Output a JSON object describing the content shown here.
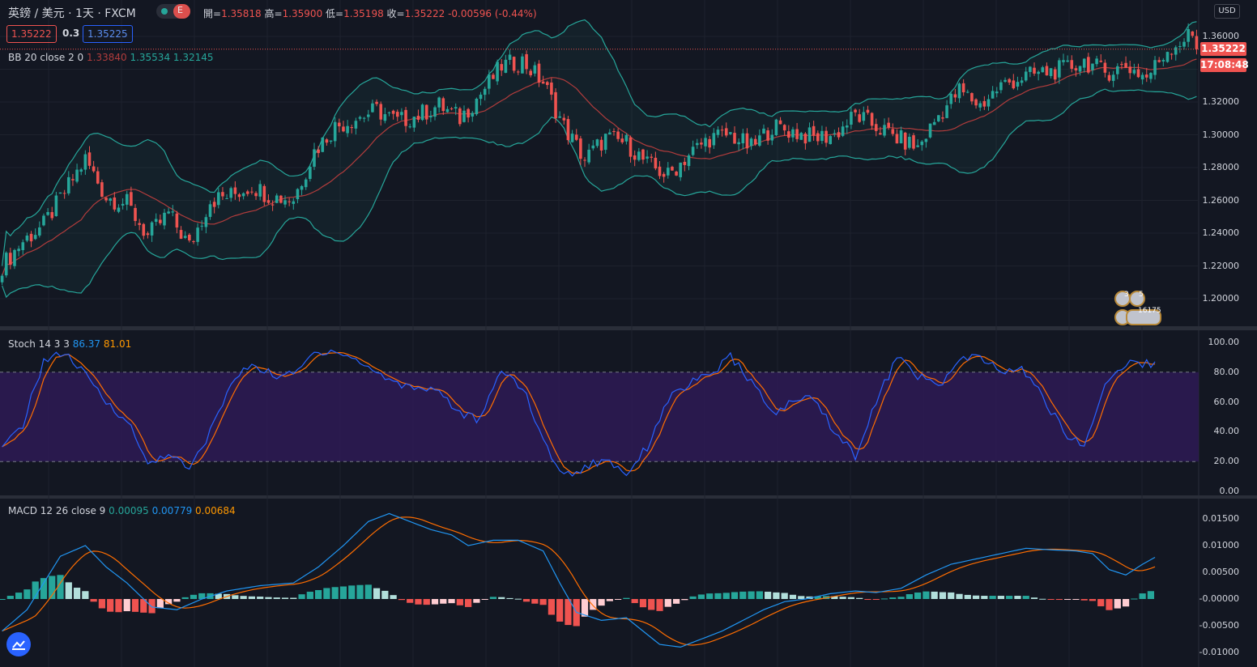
{
  "header": {
    "symbol": "英鎊 / 美元 · 1天 · FXCM",
    "pill_letter": "E",
    "open_label": "開=",
    "open": "1.35818",
    "high_label": "高=",
    "high": "1.35900",
    "low_label": "低=",
    "low": "1.35198",
    "close_label": "收=",
    "close": "1.35222",
    "change": "-0.00596 (-0.44%)",
    "sell_price": "1.35222",
    "spread": "0.3",
    "buy_price": "1.35225"
  },
  "colors": {
    "background": "#131722",
    "up": "#26a69a",
    "down": "#ef5350",
    "bb_band": "#26a69a",
    "bb_basis": "#b13c3c",
    "stoch_k": "#2962ff",
    "stoch_d": "#ff6d00",
    "stoch_band": "#2e1a55",
    "macd_line": "#2196f3",
    "signal_line": "#ff6d00"
  },
  "bb_legend": {
    "name": "BB 20 close 2 0",
    "basis": "1.33840",
    "upper": "1.35534",
    "lower": "1.32145"
  },
  "stoch_legend": {
    "name": "Stoch 14 3 3",
    "k": "86.37",
    "d": "81.01"
  },
  "macd_legend": {
    "name": "MACD 12 26 close 9",
    "hist": "0.00095",
    "macd": "0.00779",
    "signal": "0.00684"
  },
  "price_axis": {
    "currency": "USD",
    "ticks": [
      "1.36000",
      "1.34000",
      "1.32000",
      "1.30000",
      "1.28000",
      "1.26000",
      "1.24000",
      "1.22000",
      "1.20000"
    ],
    "last_price": "1.35222",
    "countdown": "17:08:48"
  },
  "stoch_axis": {
    "ticks": [
      "100.00",
      "80.00",
      "60.00",
      "40.00",
      "20.00",
      "0.00"
    ]
  },
  "macd_axis": {
    "ticks": [
      "0.01500",
      "0.01000",
      "0.00500",
      "-0.00000",
      "-0.00500",
      "-0.01000"
    ]
  },
  "events": {
    "count_a": "3",
    "count_b": "5",
    "count_c": "16175"
  },
  "chart_data": {
    "type": "candlestick",
    "ylim": [
      1.19,
      1.37
    ],
    "anchors": [
      [
        0,
        1.22
      ],
      [
        5,
        1.235
      ],
      [
        10,
        1.245
      ],
      [
        15,
        1.265
      ],
      [
        20,
        1.285
      ],
      [
        25,
        1.262
      ],
      [
        30,
        1.258
      ],
      [
        35,
        1.238
      ],
      [
        40,
        1.252
      ],
      [
        45,
        1.232
      ],
      [
        50,
        1.26
      ],
      [
        55,
        1.263
      ],
      [
        60,
        1.269
      ],
      [
        65,
        1.262
      ],
      [
        70,
        1.261
      ],
      [
        75,
        1.29
      ],
      [
        80,
        1.305
      ],
      [
        85,
        1.31
      ],
      [
        90,
        1.315
      ],
      [
        95,
        1.308
      ],
      [
        100,
        1.312
      ],
      [
        105,
        1.318
      ],
      [
        110,
        1.31
      ],
      [
        115,
        1.325
      ],
      [
        120,
        1.342
      ],
      [
        125,
        1.345
      ],
      [
        130,
        1.332
      ],
      [
        135,
        1.305
      ],
      [
        140,
        1.285
      ],
      [
        145,
        1.298
      ],
      [
        150,
        1.295
      ],
      [
        155,
        1.282
      ],
      [
        160,
        1.275
      ],
      [
        165,
        1.288
      ],
      [
        170,
        1.298
      ],
      [
        175,
        1.3
      ],
      [
        180,
        1.292
      ],
      [
        185,
        1.305
      ],
      [
        190,
        1.302
      ],
      [
        195,
        1.298
      ],
      [
        200,
        1.3
      ],
      [
        205,
        1.312
      ],
      [
        210,
        1.305
      ],
      [
        215,
        1.298
      ],
      [
        220,
        1.292
      ],
      [
        225,
        1.312
      ],
      [
        230,
        1.327
      ],
      [
        235,
        1.318
      ],
      [
        240,
        1.33
      ],
      [
        245,
        1.335
      ],
      [
        250,
        1.338
      ],
      [
        255,
        1.34
      ],
      [
        260,
        1.345
      ],
      [
        265,
        1.338
      ],
      [
        270,
        1.342
      ],
      [
        275,
        1.335
      ],
      [
        280,
        1.352
      ],
      [
        285,
        1.36
      ]
    ],
    "stoch_k_anchors": [
      [
        0,
        28
      ],
      [
        5,
        45
      ],
      [
        10,
        88
      ],
      [
        15,
        93
      ],
      [
        20,
        78
      ],
      [
        25,
        60
      ],
      [
        30,
        48
      ],
      [
        35,
        18
      ],
      [
        40,
        26
      ],
      [
        45,
        14
      ],
      [
        50,
        40
      ],
      [
        55,
        72
      ],
      [
        60,
        86
      ],
      [
        65,
        78
      ],
      [
        70,
        78
      ],
      [
        75,
        93
      ],
      [
        80,
        95
      ],
      [
        85,
        88
      ],
      [
        90,
        80
      ],
      [
        95,
        72
      ],
      [
        100,
        70
      ],
      [
        105,
        68
      ],
      [
        110,
        52
      ],
      [
        115,
        48
      ],
      [
        120,
        82
      ],
      [
        125,
        70
      ],
      [
        130,
        34
      ],
      [
        135,
        10
      ],
      [
        140,
        16
      ],
      [
        145,
        22
      ],
      [
        150,
        12
      ],
      [
        155,
        30
      ],
      [
        160,
        62
      ],
      [
        165,
        72
      ],
      [
        170,
        78
      ],
      [
        175,
        90
      ],
      [
        180,
        74
      ],
      [
        185,
        52
      ],
      [
        190,
        60
      ],
      [
        195,
        64
      ],
      [
        200,
        40
      ],
      [
        205,
        24
      ],
      [
        210,
        60
      ],
      [
        215,
        90
      ],
      [
        220,
        78
      ],
      [
        225,
        70
      ],
      [
        230,
        88
      ],
      [
        235,
        90
      ],
      [
        240,
        80
      ],
      [
        245,
        82
      ],
      [
        250,
        64
      ],
      [
        255,
        40
      ],
      [
        260,
        30
      ],
      [
        265,
        72
      ],
      [
        270,
        86
      ]
    ],
    "macd_anchors": [
      [
        0,
        -0.006
      ],
      [
        6,
        -0.002
      ],
      [
        14,
        0.008
      ],
      [
        20,
        0.01
      ],
      [
        25,
        0.006
      ],
      [
        30,
        0.003
      ],
      [
        36,
        -0.0015
      ],
      [
        42,
        -0.002
      ],
      [
        48,
        0.0
      ],
      [
        54,
        0.0015
      ],
      [
        62,
        0.0025
      ],
      [
        70,
        0.003
      ],
      [
        76,
        0.006
      ],
      [
        82,
        0.01
      ],
      [
        88,
        0.0145
      ],
      [
        93,
        0.016
      ],
      [
        98,
        0.0145
      ],
      [
        103,
        0.013
      ],
      [
        108,
        0.012
      ],
      [
        112,
        0.01
      ],
      [
        118,
        0.011
      ],
      [
        124,
        0.011
      ],
      [
        130,
        0.009
      ],
      [
        134,
        0.003
      ],
      [
        138,
        -0.0025
      ],
      [
        144,
        -0.004
      ],
      [
        150,
        -0.0035
      ],
      [
        154,
        -0.006
      ],
      [
        158,
        -0.0085
      ],
      [
        163,
        -0.009
      ],
      [
        168,
        -0.0075
      ],
      [
        173,
        -0.006
      ],
      [
        178,
        -0.004
      ],
      [
        183,
        -0.002
      ],
      [
        188,
        -0.0005
      ],
      [
        193,
        0.0
      ],
      [
        199,
        0.001
      ],
      [
        205,
        0.0015
      ],
      [
        210,
        0.0012
      ],
      [
        216,
        0.002
      ],
      [
        222,
        0.0045
      ],
      [
        228,
        0.0065
      ],
      [
        234,
        0.0075
      ],
      [
        240,
        0.0085
      ],
      [
        246,
        0.0095
      ],
      [
        252,
        0.0092
      ],
      [
        258,
        0.009
      ],
      [
        262,
        0.0085
      ],
      [
        266,
        0.0055
      ],
      [
        270,
        0.0045
      ],
      [
        274,
        0.0065
      ],
      [
        277,
        0.0078
      ]
    ]
  }
}
